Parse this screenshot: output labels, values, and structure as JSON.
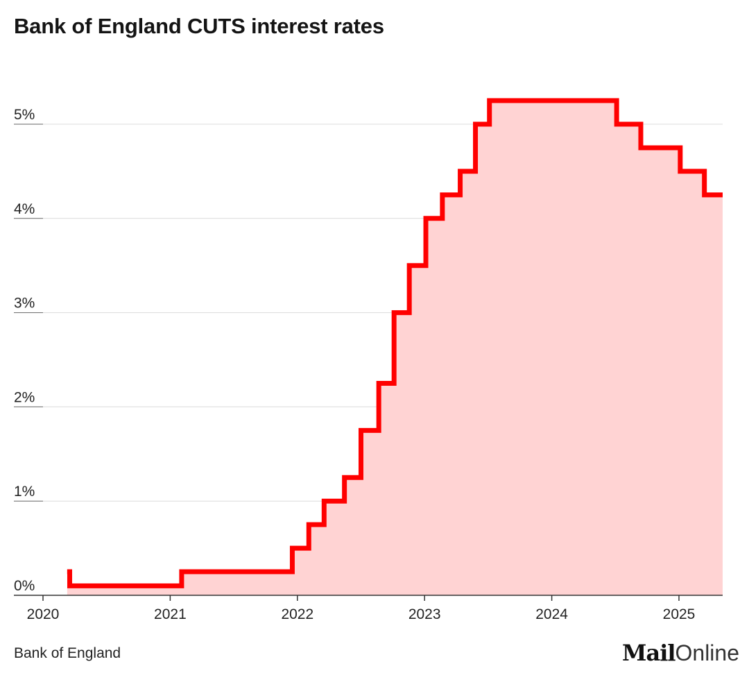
{
  "title": "Bank of England CUTS interest rates",
  "source": "Bank of England",
  "logo": {
    "part1": "Mail",
    "part2": "Online"
  },
  "colors": {
    "line": "#ff0000",
    "fill": "#ffd3d3",
    "grid": "#dcdcdc",
    "axis": "#333333"
  },
  "chart_data": {
    "type": "area",
    "title": "Bank of England CUTS interest rates",
    "xlabel": "",
    "ylabel": "",
    "xlim": [
      2020.0,
      2025.35
    ],
    "ylim": [
      0,
      5.5
    ],
    "step": true,
    "grid": true,
    "x_ticks": [
      {
        "value": 2020,
        "label": "2020"
      },
      {
        "value": 2021,
        "label": "2021"
      },
      {
        "value": 2022,
        "label": "2022"
      },
      {
        "value": 2023,
        "label": "2023"
      },
      {
        "value": 2024,
        "label": "2024"
      },
      {
        "value": 2025,
        "label": "2025"
      }
    ],
    "y_ticks": [
      {
        "value": 0,
        "label": "0%"
      },
      {
        "value": 1,
        "label": "1%"
      },
      {
        "value": 2,
        "label": "2%"
      },
      {
        "value": 3,
        "label": "3%"
      },
      {
        "value": 4,
        "label": "4%"
      },
      {
        "value": 5,
        "label": "5%"
      }
    ],
    "series": [
      {
        "points": [
          {
            "x": 2020.19,
            "y": 0.25
          },
          {
            "x": 2020.21,
            "y": 0.1
          },
          {
            "x": 2021.09,
            "y": 0.25
          },
          {
            "x": 2021.96,
            "y": 0.5
          },
          {
            "x": 2022.09,
            "y": 0.75
          },
          {
            "x": 2022.21,
            "y": 1.0
          },
          {
            "x": 2022.37,
            "y": 1.25
          },
          {
            "x": 2022.5,
            "y": 1.75
          },
          {
            "x": 2022.64,
            "y": 2.25
          },
          {
            "x": 2022.76,
            "y": 3.0
          },
          {
            "x": 2022.88,
            "y": 3.5
          },
          {
            "x": 2023.01,
            "y": 4.0
          },
          {
            "x": 2023.14,
            "y": 4.25
          },
          {
            "x": 2023.28,
            "y": 4.5
          },
          {
            "x": 2023.4,
            "y": 5.0
          },
          {
            "x": 2023.51,
            "y": 5.25
          },
          {
            "x": 2024.51,
            "y": 5.0
          },
          {
            "x": 2024.7,
            "y": 4.75
          },
          {
            "x": 2025.01,
            "y": 4.5
          },
          {
            "x": 2025.2,
            "y": 4.25
          }
        ]
      }
    ]
  }
}
